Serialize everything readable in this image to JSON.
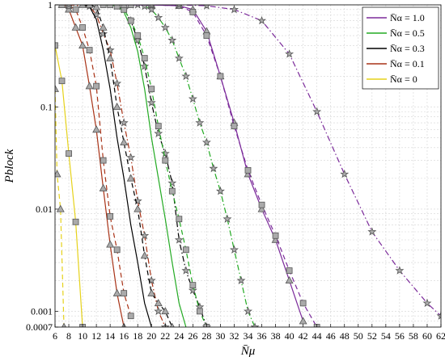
{
  "chart_data": {
    "type": "line",
    "xlabel": "N̄μ",
    "ylabel": "Pblock",
    "xlim": [
      6,
      62
    ],
    "ylim": [
      0.0007,
      1
    ],
    "yscale": "log",
    "grid": true,
    "legend_position": "top-right",
    "x_ticks": [
      "6",
      "8",
      "10",
      "12",
      "14",
      "16",
      "18",
      "20",
      "22",
      "24",
      "26",
      "28",
      "30",
      "32",
      "34",
      "36",
      "38",
      "40",
      "42",
      "44",
      "46",
      "48",
      "50",
      "52",
      "54",
      "56",
      "58",
      "60",
      "62"
    ],
    "y_ticks": [
      {
        "value": 1,
        "label": "1"
      },
      {
        "value": 0.1,
        "label": "0.1"
      },
      {
        "value": 0.01,
        "label": "0.01"
      },
      {
        "value": 0.001,
        "label": "0.001"
      },
      {
        "value": 0.0007,
        "label": "0.0007"
      }
    ],
    "legend": [
      {
        "label": "N̄α = 1.0",
        "color": "#7b2a9a"
      },
      {
        "label": "N̄α = 0.5",
        "color": "#22aa22"
      },
      {
        "label": "N̄α = 0.3",
        "color": "#000000"
      },
      {
        "label": "N̄α = 0.1",
        "color": "#a83216"
      },
      {
        "label": "N̄α = 0",
        "color": "#e6d21a"
      }
    ],
    "series": [
      {
        "color": "#e6d21a",
        "dash": "solid",
        "marker": "square",
        "points": [
          [
            6,
            0.4
          ],
          [
            7,
            0.18
          ],
          [
            8,
            0.035
          ],
          [
            9,
            0.0075
          ],
          [
            10,
            0.0007
          ]
        ]
      },
      {
        "color": "#e6d21a",
        "dash": "dash",
        "marker": "triangle",
        "points": [
          [
            6,
            0.15
          ],
          [
            6.3,
            0.022
          ],
          [
            6.8,
            0.01
          ],
          [
            7.3,
            0.0007
          ]
        ]
      },
      {
        "color": "#a83216",
        "dash": "solid",
        "marker": "triangle",
        "points": [
          [
            7,
            1
          ],
          [
            8,
            0.9
          ],
          [
            9,
            0.6
          ],
          [
            10,
            0.4
          ],
          [
            11,
            0.16
          ],
          [
            12,
            0.06
          ],
          [
            13,
            0.016
          ],
          [
            14,
            0.0045
          ],
          [
            15,
            0.0015
          ],
          [
            16,
            0.0007
          ]
        ]
      },
      {
        "color": "#a83216",
        "dash": "dash",
        "marker": "square",
        "points": [
          [
            7,
            1
          ],
          [
            8,
            0.98
          ],
          [
            9,
            0.9
          ],
          [
            10,
            0.6
          ],
          [
            11,
            0.36
          ],
          [
            12,
            0.16
          ],
          [
            13,
            0.03
          ],
          [
            14,
            0.0085
          ],
          [
            15,
            0.004
          ],
          [
            16,
            0.0015
          ],
          [
            17,
            0.0009
          ]
        ]
      },
      {
        "color": "#a83216",
        "dash": "dashdot",
        "marker": "star",
        "points": [
          [
            8,
            1
          ],
          [
            11,
            0.97
          ],
          [
            12,
            0.8
          ],
          [
            13,
            0.52
          ],
          [
            14,
            0.36
          ],
          [
            15,
            0.17
          ],
          [
            16,
            0.07
          ],
          [
            17,
            0.032
          ],
          [
            18,
            0.012
          ],
          [
            19,
            0.0055
          ],
          [
            20,
            0.002
          ],
          [
            21,
            0.001
          ],
          [
            22,
            0.0007
          ]
        ]
      },
      {
        "color": "#000000",
        "dash": "solid",
        "marker": "none",
        "points": [
          [
            10,
            1
          ],
          [
            11,
            0.96
          ],
          [
            12,
            0.72
          ],
          [
            13,
            0.36
          ],
          [
            14,
            0.15
          ],
          [
            15,
            0.05
          ],
          [
            16,
            0.02
          ],
          [
            17,
            0.007
          ],
          [
            18,
            0.003
          ],
          [
            19,
            0.0012
          ],
          [
            20,
            0.0007
          ]
        ]
      },
      {
        "color": "#000000",
        "dash": "dash",
        "marker": "triangle",
        "points": [
          [
            10,
            1
          ],
          [
            11,
            1
          ],
          [
            12,
            0.95
          ],
          [
            13,
            0.6
          ],
          [
            14,
            0.3
          ],
          [
            15,
            0.1
          ],
          [
            16,
            0.045
          ],
          [
            17,
            0.02
          ],
          [
            18,
            0.01
          ],
          [
            19,
            0.0035
          ],
          [
            20,
            0.0015
          ],
          [
            21,
            0.0012
          ],
          [
            22,
            0.001
          ],
          [
            23,
            0.0007
          ]
        ]
      },
      {
        "color": "#000000",
        "dash": "dashdot",
        "marker": "star",
        "points": [
          [
            14,
            1
          ],
          [
            15,
            0.97
          ],
          [
            16,
            0.9
          ],
          [
            17,
            0.7
          ],
          [
            18,
            0.45
          ],
          [
            19,
            0.25
          ],
          [
            20,
            0.11
          ],
          [
            21,
            0.055
          ],
          [
            22,
            0.035
          ],
          [
            23,
            0.018
          ],
          [
            24,
            0.005
          ],
          [
            25,
            0.0025
          ],
          [
            26,
            0.0016
          ],
          [
            27,
            0.0011
          ],
          [
            28,
            0.0007
          ]
        ]
      },
      {
        "color": "#22aa22",
        "dash": "solid",
        "marker": "none",
        "points": [
          [
            14,
            1
          ],
          [
            15,
            0.98
          ],
          [
            16,
            0.85
          ],
          [
            17,
            0.6
          ],
          [
            18,
            0.35
          ],
          [
            19,
            0.15
          ],
          [
            20,
            0.05
          ],
          [
            21,
            0.02
          ],
          [
            22,
            0.008
          ],
          [
            23,
            0.003
          ],
          [
            24,
            0.0012
          ],
          [
            25,
            0.0007
          ]
        ]
      },
      {
        "color": "#22aa22",
        "dash": "dash",
        "marker": "square",
        "points": [
          [
            13,
            1
          ],
          [
            14,
            1
          ],
          [
            15,
            0.97
          ],
          [
            16,
            0.9
          ],
          [
            17,
            0.7
          ],
          [
            18,
            0.5
          ],
          [
            19,
            0.3
          ],
          [
            20,
            0.15
          ],
          [
            21,
            0.065
          ],
          [
            22,
            0.03
          ],
          [
            23,
            0.015
          ],
          [
            24,
            0.008
          ],
          [
            25,
            0.004
          ],
          [
            26,
            0.0018
          ],
          [
            27,
            0.001
          ],
          [
            28,
            0.0007
          ]
        ]
      },
      {
        "color": "#22aa22",
        "dash": "dashdot",
        "marker": "star",
        "points": [
          [
            17,
            1
          ],
          [
            18,
            1
          ],
          [
            19,
            0.97
          ],
          [
            20,
            0.9
          ],
          [
            21,
            0.75
          ],
          [
            22,
            0.6
          ],
          [
            23,
            0.45
          ],
          [
            24,
            0.3
          ],
          [
            25,
            0.2
          ],
          [
            26,
            0.12
          ],
          [
            27,
            0.07
          ],
          [
            28,
            0.045
          ],
          [
            29,
            0.025
          ],
          [
            30,
            0.015
          ],
          [
            31,
            0.008
          ],
          [
            32,
            0.004
          ],
          [
            33,
            0.002
          ],
          [
            34,
            0.001
          ],
          [
            35,
            0.0007
          ]
        ]
      },
      {
        "color": "#7b2a9a",
        "dash": "solid",
        "marker": "triangle",
        "points": [
          [
            16,
            1
          ],
          [
            20,
            1
          ],
          [
            24,
            0.98
          ],
          [
            26,
            0.9
          ],
          [
            28,
            0.55
          ],
          [
            30,
            0.2
          ],
          [
            32,
            0.07
          ],
          [
            34,
            0.022
          ],
          [
            36,
            0.01
          ],
          [
            38,
            0.005
          ],
          [
            40,
            0.002
          ],
          [
            42,
            0.0008
          ]
        ]
      },
      {
        "color": "#7b2a9a",
        "dash": "dash",
        "marker": "square",
        "points": [
          [
            17,
            1
          ],
          [
            20,
            1
          ],
          [
            24,
            0.98
          ],
          [
            26,
            0.85
          ],
          [
            28,
            0.5
          ],
          [
            30,
            0.2
          ],
          [
            32,
            0.065
          ],
          [
            34,
            0.024
          ],
          [
            36,
            0.011
          ],
          [
            38,
            0.0055
          ],
          [
            40,
            0.0025
          ],
          [
            42,
            0.0012
          ],
          [
            44,
            0.0007
          ]
        ]
      },
      {
        "color": "#7b2a9a",
        "dash": "dashdot",
        "marker": "star",
        "points": [
          [
            20,
            1
          ],
          [
            24,
            1
          ],
          [
            28,
            0.98
          ],
          [
            32,
            0.9
          ],
          [
            36,
            0.7
          ],
          [
            40,
            0.33
          ],
          [
            44,
            0.09
          ],
          [
            48,
            0.022
          ],
          [
            52,
            0.006
          ],
          [
            56,
            0.0025
          ],
          [
            60,
            0.0012
          ],
          [
            62,
            0.0009
          ]
        ]
      }
    ]
  }
}
